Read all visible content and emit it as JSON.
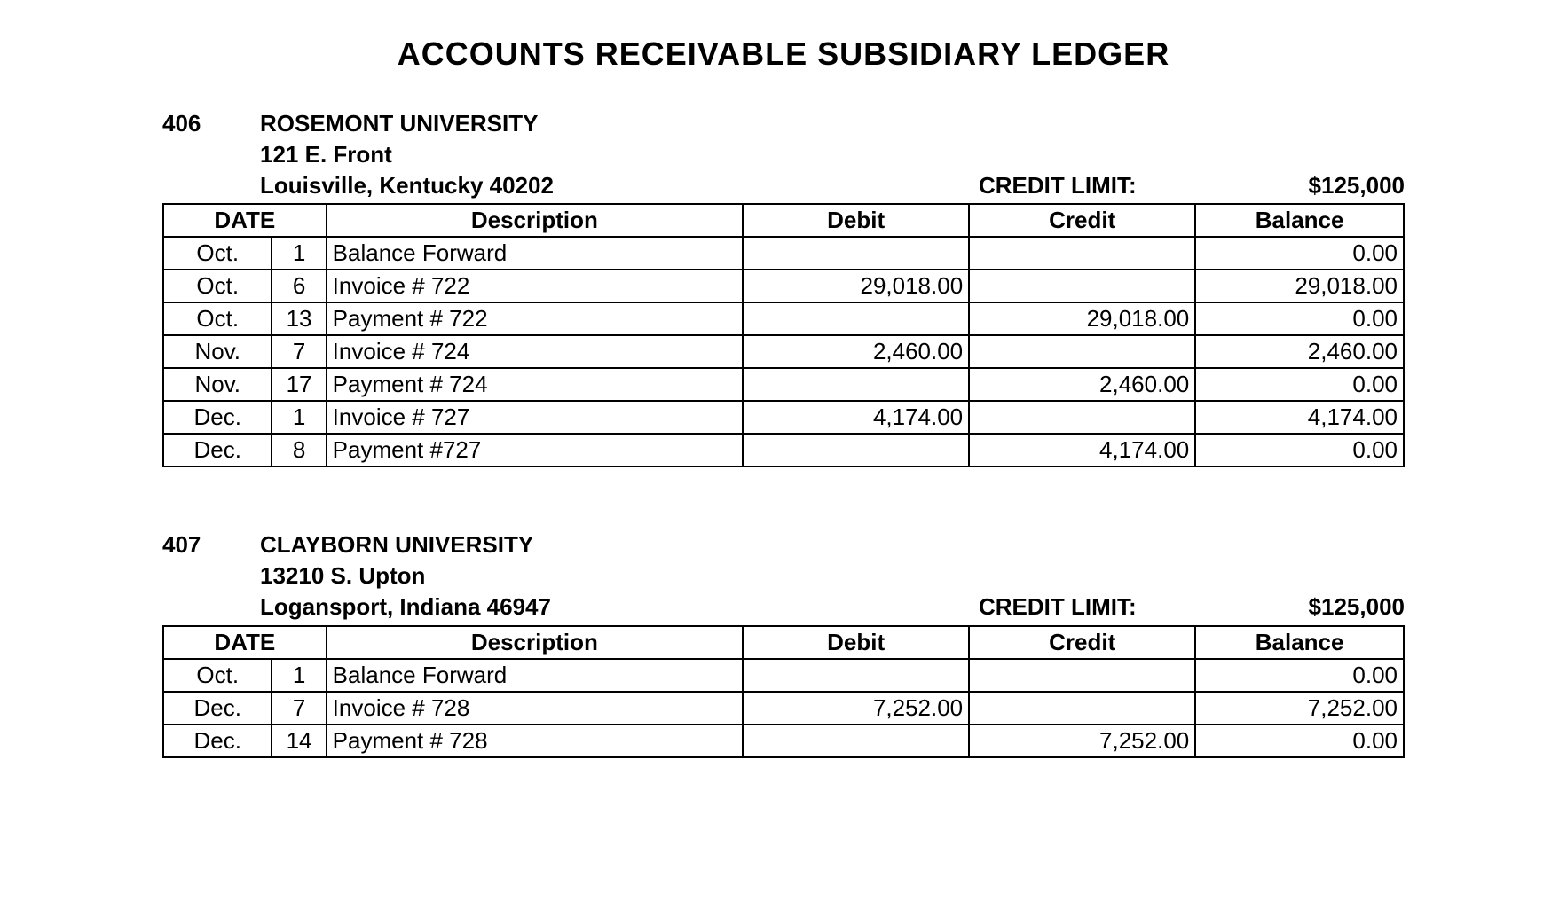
{
  "title": "ACCOUNTS RECEIVABLE SUBSIDIARY LEDGER",
  "columns": {
    "date": "DATE",
    "description": "Description",
    "debit": "Debit",
    "credit": "Credit",
    "balance": "Balance"
  },
  "credit_limit_label": "CREDIT LIMIT:",
  "accounts": [
    {
      "number": "406",
      "name": "ROSEMONT UNIVERSITY",
      "street": "121 E. Front",
      "city_state_zip": "Louisville, Kentucky 40202",
      "credit_limit": "$125,000",
      "rows": [
        {
          "month": "Oct.",
          "day": "1",
          "desc": "Balance Forward",
          "debit": "",
          "credit": "",
          "balance": "0.00"
        },
        {
          "month": "Oct.",
          "day": "6",
          "desc": "Invoice # 722",
          "debit": "29,018.00",
          "credit": "",
          "balance": "29,018.00"
        },
        {
          "month": "Oct.",
          "day": "13",
          "desc": "Payment # 722",
          "debit": "",
          "credit": "29,018.00",
          "balance": "0.00"
        },
        {
          "month": "Nov.",
          "day": "7",
          "desc": "Invoice # 724",
          "debit": "2,460.00",
          "credit": "",
          "balance": "2,460.00"
        },
        {
          "month": "Nov.",
          "day": "17",
          "desc": "Payment # 724",
          "debit": "",
          "credit": "2,460.00",
          "balance": "0.00"
        },
        {
          "month": "Dec.",
          "day": "1",
          "desc": "Invoice # 727",
          "debit": "4,174.00",
          "credit": "",
          "balance": "4,174.00"
        },
        {
          "month": "Dec.",
          "day": "8",
          "desc": "Payment #727",
          "debit": "",
          "credit": "4,174.00",
          "balance": "0.00"
        }
      ]
    },
    {
      "number": "407",
      "name": "CLAYBORN UNIVERSITY",
      "street": "13210 S. Upton",
      "city_state_zip": "Logansport, Indiana 46947",
      "credit_limit": "$125,000",
      "rows": [
        {
          "month": "Oct.",
          "day": "1",
          "desc": "Balance Forward",
          "debit": "",
          "credit": "",
          "balance": "0.00"
        },
        {
          "month": "Dec.",
          "day": "7",
          "desc": "Invoice # 728",
          "debit": "7,252.00",
          "credit": "",
          "balance": "7,252.00"
        },
        {
          "month": "Dec.",
          "day": "14",
          "desc": "Payment # 728",
          "debit": "",
          "credit": "7,252.00",
          "balance": "0.00"
        }
      ]
    }
  ]
}
